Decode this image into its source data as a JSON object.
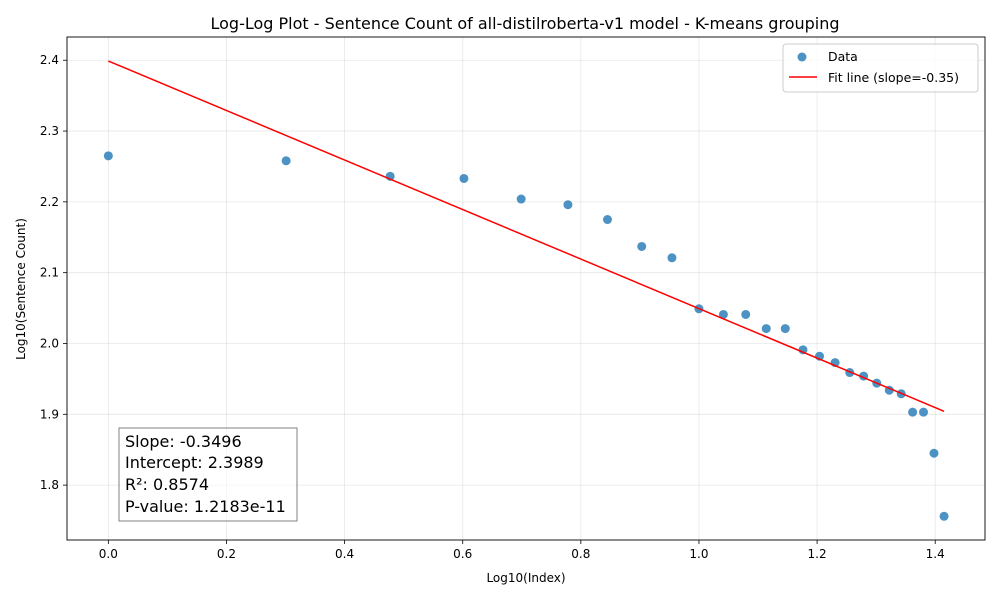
{
  "chart_data": {
    "type": "scatter",
    "title": "Log-Log Plot - Sentence Count of all-distilroberta-v1 model - K-means grouping",
    "xlabel": "Log10(Index)",
    "ylabel": "Log10(Sentence Count)",
    "xlim": [
      -0.07,
      1.4843
    ],
    "ylim": [
      1.7225,
      2.4328
    ],
    "xticks": [
      0.0,
      0.2,
      0.4,
      0.6,
      0.8,
      1.0,
      1.2,
      1.4
    ],
    "xtick_labels": [
      "0.0",
      "0.2",
      "0.4",
      "0.6",
      "0.8",
      "1.0",
      "1.2",
      "1.4"
    ],
    "yticks": [
      1.8,
      1.9,
      2.0,
      2.1,
      2.2,
      2.3,
      2.4
    ],
    "ytick_labels": [
      "1.8",
      "1.9",
      "2.0",
      "2.1",
      "2.2",
      "2.3",
      "2.4"
    ],
    "grid": true,
    "legend_position": "top-right",
    "series": [
      {
        "name": "Data",
        "kind": "scatter",
        "color": "#1f77b4",
        "x": [
          0.0,
          0.30103,
          0.47712,
          0.60206,
          0.69897,
          0.77815,
          0.8451,
          0.90309,
          0.95424,
          1.0,
          1.04139,
          1.07918,
          1.11394,
          1.14613,
          1.17609,
          1.20412,
          1.23045,
          1.25527,
          1.27875,
          1.30103,
          1.32222,
          1.34242,
          1.36173,
          1.38021,
          1.39794,
          1.41497
        ],
        "y": [
          2.265,
          2.258,
          2.236,
          2.233,
          2.204,
          2.196,
          2.175,
          2.137,
          2.121,
          2.049,
          2.041,
          2.041,
          2.021,
          2.021,
          1.991,
          1.982,
          1.973,
          1.959,
          1.954,
          1.944,
          1.934,
          1.929,
          1.903,
          1.903,
          1.845,
          1.756
        ]
      },
      {
        "name": "Fit line (slope=-0.35)",
        "kind": "line",
        "color": "#ff0000",
        "slope": -0.3496,
        "intercept": 2.3989,
        "x_range": [
          0.0,
          1.41497
        ]
      }
    ],
    "annotation": {
      "lines": [
        "Slope: -0.3496",
        "Intercept: 2.3989",
        "R²: 0.8574",
        "P-value: 1.2183e-11"
      ],
      "position": "bottom-left"
    }
  }
}
